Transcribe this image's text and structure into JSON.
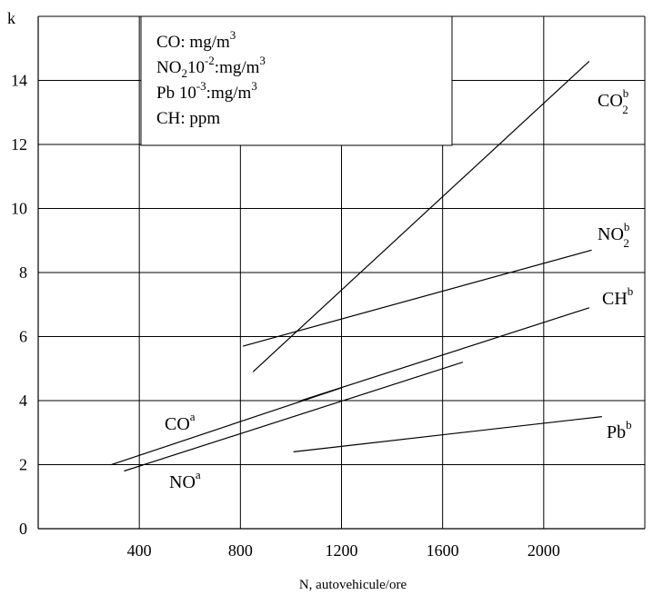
{
  "chart_data": {
    "type": "line",
    "ylabel": "k",
    "xlabel": "N, autovehicule/ore",
    "xlim": [
      0,
      2400
    ],
    "ylim": [
      0,
      16
    ],
    "x_ticks": [
      "400",
      "800",
      "1200",
      "1600",
      "2000"
    ],
    "x_tick_values": [
      400,
      800,
      1200,
      1600,
      2000
    ],
    "y_ticks": [
      "0",
      "2",
      "4",
      "6",
      "8",
      "10",
      "12",
      "14"
    ],
    "y_tick_values": [
      0,
      2,
      4,
      6,
      8,
      10,
      12,
      14
    ],
    "grid": true,
    "units_legend": [
      {
        "base": "CO: mg/m",
        "sup": "3"
      },
      {
        "base": "NO",
        "sub": "2",
        "mid": "10",
        "sup2": "-2",
        "tail": ":mg/m",
        "sup": "3"
      },
      {
        "base": "Pb 10",
        "sup2": "-3",
        "tail": ":mg/m",
        "sup": "3"
      },
      {
        "base": "CH: ppm"
      }
    ],
    "series": [
      {
        "name": "CO",
        "sup": "b",
        "sub": "2",
        "x": [
          850,
          2180
        ],
        "y": [
          4.9,
          14.6
        ]
      },
      {
        "name": "NO",
        "sup": "b",
        "sub": "2",
        "x": [
          810,
          2190
        ],
        "y": [
          5.7,
          8.7
        ]
      },
      {
        "name": "CH",
        "sup": "b",
        "x": [
          1040,
          2180
        ],
        "y": [
          4.0,
          6.9
        ]
      },
      {
        "name": "Pb",
        "sup": "b",
        "x": [
          1010,
          2230
        ],
        "y": [
          2.4,
          3.5
        ]
      },
      {
        "name": "CO",
        "sup": "a",
        "x": [
          290,
          1200
        ],
        "y": [
          2.0,
          4.4
        ]
      },
      {
        "name": "NO",
        "sup": "a",
        "x": [
          340,
          1680
        ],
        "y": [
          1.8,
          5.2
        ]
      }
    ]
  }
}
